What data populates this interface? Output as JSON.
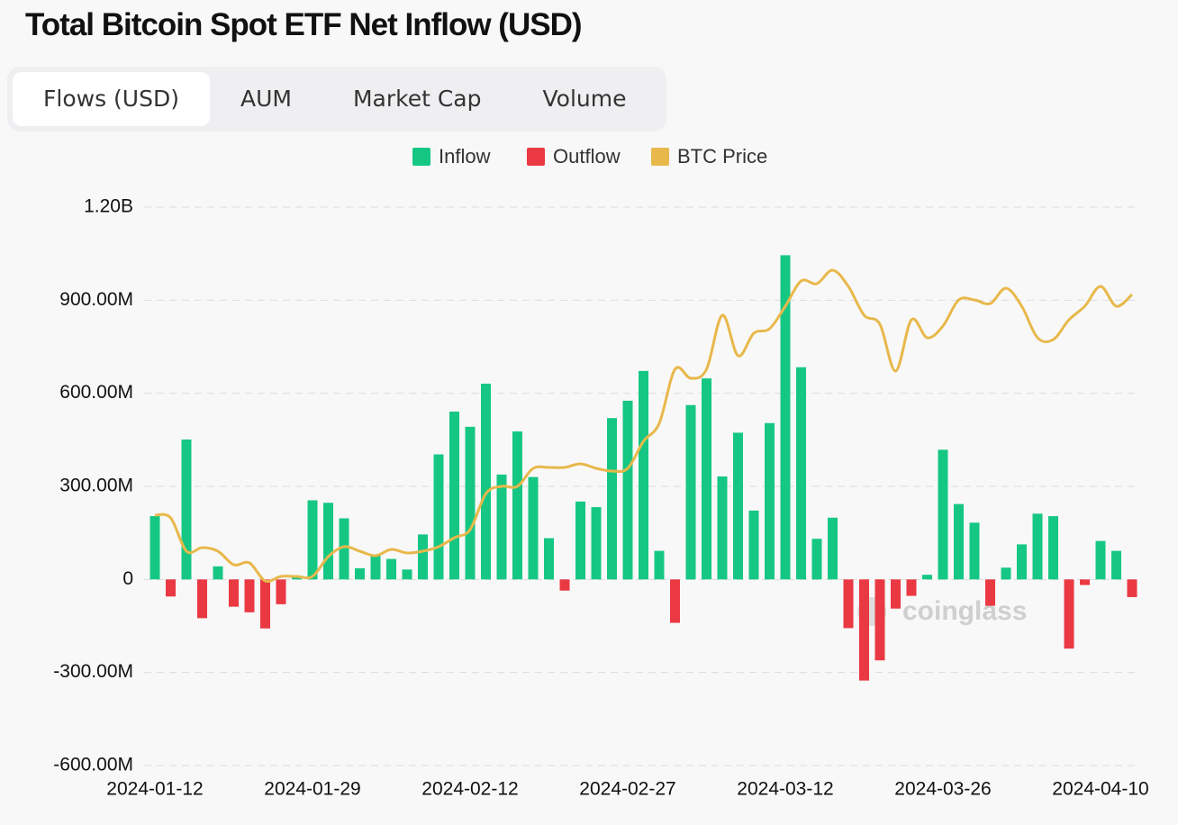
{
  "tabs": [
    "Flows (USD)",
    "AUM",
    "Market Cap",
    "Volume"
  ],
  "active_tab": 0,
  "watermark": "coinglass",
  "chart_data": {
    "type": "bar",
    "title": "Total Bitcoin Spot ETF Net Inflow (USD)",
    "categories": [
      "2024-01-12",
      null,
      null,
      null,
      null,
      null,
      null,
      null,
      null,
      null,
      "2024-01-29",
      null,
      null,
      null,
      null,
      null,
      null,
      null,
      null,
      null,
      "2024-02-12",
      null,
      null,
      null,
      null,
      null,
      null,
      null,
      null,
      null,
      "2024-02-27",
      null,
      null,
      null,
      null,
      null,
      null,
      null,
      null,
      null,
      "2024-03-12",
      null,
      null,
      null,
      null,
      null,
      null,
      null,
      null,
      null,
      "2024-03-26",
      null,
      null,
      null,
      null,
      null,
      null,
      null,
      null,
      null,
      "2024-04-10",
      null,
      null
    ],
    "series": [
      {
        "name": "Inflow",
        "color": "#16c784",
        "values": [
          204000000,
          null,
          451000000,
          null,
          42000000,
          null,
          null,
          null,
          null,
          10000000,
          255000000,
          247000000,
          197000000,
          36000000,
          80000000,
          66000000,
          32000000,
          145000000,
          403000000,
          541000000,
          492000000,
          631000000,
          338000000,
          477000000,
          330000000,
          133000000,
          null,
          251000000,
          233000000,
          520000000,
          576000000,
          672000000,
          92000000,
          null,
          562000000,
          648000000,
          332000000,
          473000000,
          222000000,
          504000000,
          1045000000,
          684000000,
          131000000,
          199000000,
          null,
          null,
          null,
          null,
          null,
          15000000,
          418000000,
          243000000,
          183000000,
          null,
          38000000,
          113000000,
          212000000,
          204000000,
          null,
          null,
          124000000,
          92000000,
          null
        ]
      },
      {
        "name": "Outflow",
        "color": "#ea3943",
        "values": [
          null,
          -55000000,
          null,
          -125000000,
          null,
          -88000000,
          -106000000,
          -158000000,
          -80000000,
          null,
          null,
          null,
          null,
          null,
          null,
          null,
          null,
          null,
          null,
          null,
          null,
          null,
          null,
          null,
          null,
          null,
          -36000000,
          null,
          null,
          null,
          null,
          null,
          null,
          -140000000,
          null,
          null,
          null,
          null,
          null,
          null,
          null,
          null,
          null,
          null,
          -157000000,
          -326000000,
          -261000000,
          -94000000,
          -53000000,
          null,
          null,
          null,
          null,
          -85000000,
          null,
          null,
          null,
          null,
          -223000000,
          -18000000,
          null,
          null,
          -57000000
        ]
      },
      {
        "name": "BTC Price",
        "color": "#e8b84b",
        "axis": "y2",
        "values": [
          46300,
          46000,
          42300,
          42700,
          42300,
          40800,
          41000,
          39000,
          39500,
          39500,
          39500,
          41700,
          42800,
          42300,
          41800,
          42500,
          42100,
          42300,
          42800,
          43800,
          44700,
          48700,
          49500,
          49500,
          51500,
          51600,
          51600,
          52000,
          51500,
          51200,
          51500,
          54500,
          56500,
          62500,
          61500,
          62500,
          68500,
          64000,
          66500,
          67000,
          69500,
          72300,
          72000,
          73500,
          71700,
          68500,
          67500,
          62300,
          68000,
          66000,
          67300,
          70200,
          70200,
          69800,
          71500,
          69500,
          66000,
          65800,
          68000,
          69500,
          71700,
          69500,
          70800
        ]
      }
    ],
    "ylim": [
      -600000000,
      1200000000
    ],
    "yticks": [
      {
        "value": -600000000,
        "label": "-600.00M"
      },
      {
        "value": -300000000,
        "label": "-300.00M"
      },
      0,
      {
        "value": 300000000,
        "label": "300.00M"
      },
      {
        "value": 600000000,
        "label": "600.00M"
      },
      {
        "value": 900000000,
        "label": "900.00M"
      },
      {
        "value": 1200000000,
        "label": "1.20B"
      }
    ],
    "y2lim": [
      18500,
      80500
    ],
    "grid": true,
    "legend": "top"
  }
}
